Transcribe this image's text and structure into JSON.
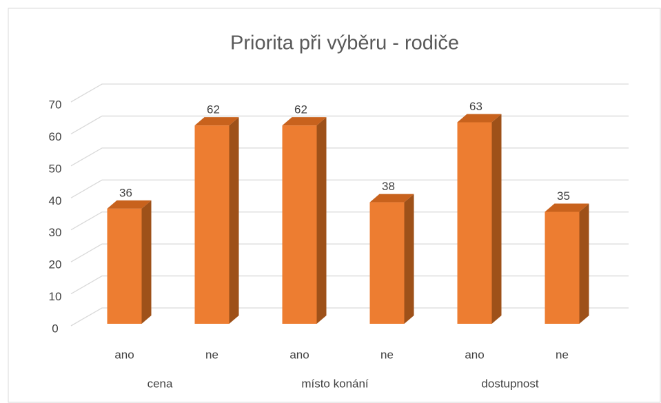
{
  "chart_data": {
    "type": "bar3d",
    "title": "Priorita při výběru - rodiče",
    "categories": [
      "ano",
      "ne",
      "ano",
      "ne",
      "ano",
      "ne"
    ],
    "groups": [
      "cena",
      "místo konání",
      "dostupnost"
    ],
    "values": [
      36,
      62,
      62,
      38,
      63,
      35
    ],
    "color": "#ED7D31",
    "ylim": [
      0,
      70
    ],
    "yticks": [
      0,
      10,
      20,
      30,
      40,
      50,
      60,
      70
    ],
    "grid": true
  }
}
